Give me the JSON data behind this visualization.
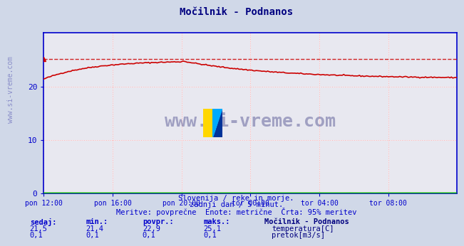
{
  "title": "Močilnik - Podnanos",
  "bg_color": "#d0d8e8",
  "plot_bg_color": "#e8e8f0",
  "grid_color": "#ffffff",
  "grid_dotted_color": "#ffaaaa",
  "title_color": "#000080",
  "axis_color": "#0000cc",
  "tick_color": "#0000cc",
  "text_color": "#0000cc",
  "watermark": "www.si-vreme.com",
  "subtitle1": "Slovenija / reke in morje.",
  "subtitle2": "zadnji dan / 5 minut.",
  "subtitle3": "Meritve: povprečne  Enote: metrične  Črta: 95% meritev",
  "xlabels": [
    "pon 12:00",
    "pon 16:00",
    "pon 20:00",
    "tor 00:00",
    "tor 04:00",
    "tor 08:00"
  ],
  "xticks": [
    0,
    48,
    96,
    144,
    192,
    240
  ],
  "ylim": [
    0,
    30
  ],
  "yticks": [
    0,
    10,
    20
  ],
  "temp_color": "#cc0000",
  "flow_color": "#00aa00",
  "dashed_color": "#cc0000",
  "legend_title": "Močilnik - Podnanos",
  "legend_label1": "temperatura[C]",
  "legend_label2": "pretok[m3/s]",
  "legend_color1": "#cc0000",
  "legend_color2": "#00aa00",
  "stats_headers": [
    "sedaj:",
    "min.:",
    "povpr.:",
    "maks.:"
  ],
  "stats_temp": [
    "21,5",
    "21,4",
    "22,9",
    "25,1"
  ],
  "stats_flow": [
    "0,1",
    "0,1",
    "0,1",
    "0,1"
  ],
  "n_points": 289,
  "temp_min": 21.4,
  "temp_max": 25.1,
  "temp_avg": 22.9,
  "temp_current": 21.5,
  "flow_value": 0.1,
  "dashed_line_y": 25.1
}
